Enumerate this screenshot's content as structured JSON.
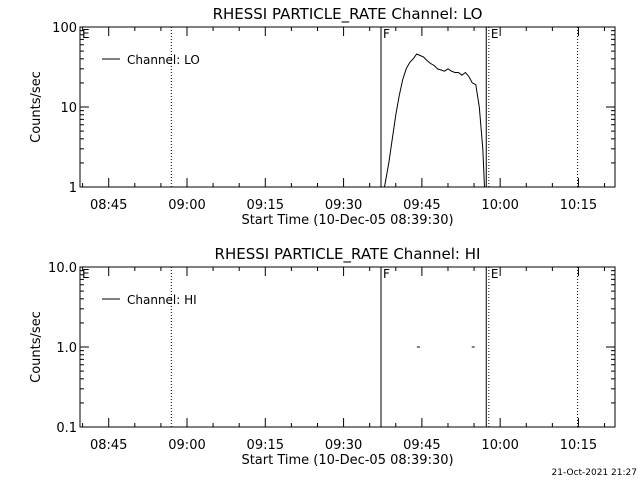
{
  "chart_data": [
    {
      "type": "line",
      "title": "RHESSI PARTICLE_RATE Channel: LO",
      "xlabel": "Start Time (10-Dec-05 08:39:30)",
      "ylabel": "Counts/sec",
      "yscale": "log",
      "ylim": [
        1,
        100
      ],
      "xlim": [
        "08:39:30",
        "10:22:00"
      ],
      "xticks": [
        "08:45",
        "09:00",
        "09:15",
        "09:30",
        "09:45",
        "10:00",
        "10:15"
      ],
      "yticks": [
        "1",
        "10",
        "100"
      ],
      "legend": {
        "label": "Channel: LO",
        "placement": "top-left"
      },
      "markers": [
        {
          "label": "E",
          "time": "08:39:30",
          "style": "none"
        },
        {
          "label": "",
          "time": "08:57:00",
          "style": "dotted"
        },
        {
          "label": "F",
          "time": "09:37:10",
          "style": "solid"
        },
        {
          "label": "",
          "time": "09:57:20",
          "style": "solid"
        },
        {
          "label": "E",
          "time": "09:57:50",
          "style": "dotted"
        },
        {
          "label": "",
          "time": "10:14:50",
          "style": "dotted"
        }
      ],
      "series": [
        {
          "name": "Channel: LO",
          "x": [
            "09:37:50",
            "09:38:40",
            "09:39:20",
            "09:40:00",
            "09:40:40",
            "09:41:20",
            "09:42:00",
            "09:42:40",
            "09:43:20",
            "09:44:00",
            "09:44:40",
            "09:45:20",
            "09:46:00",
            "09:46:40",
            "09:47:20",
            "09:48:00",
            "09:48:40",
            "09:49:20",
            "09:50:00",
            "09:50:40",
            "09:51:20",
            "09:52:00",
            "09:52:40",
            "09:53:20",
            "09:54:00",
            "09:54:40",
            "09:55:20",
            "09:56:00",
            "09:56:40",
            "09:57:00"
          ],
          "y": [
            1,
            2,
            4,
            8,
            14,
            22,
            30,
            36,
            40,
            46,
            44,
            42,
            38,
            35,
            33,
            30,
            29,
            28,
            30,
            28,
            27,
            27,
            25,
            27,
            24,
            20,
            19,
            10,
            3,
            1
          ]
        }
      ]
    },
    {
      "type": "line",
      "title": "RHESSI PARTICLE_RATE Channel: HI",
      "xlabel": "Start Time (10-Dec-05 08:39:30)",
      "ylabel": "Counts/sec",
      "yscale": "log",
      "ylim": [
        0.1,
        10
      ],
      "xlim": [
        "08:39:30",
        "10:22:00"
      ],
      "xticks": [
        "08:45",
        "09:00",
        "09:15",
        "09:30",
        "09:45",
        "10:00",
        "10:15"
      ],
      "yticks": [
        "0.1",
        "1.0",
        "10.0"
      ],
      "legend": {
        "label": "Channel: HI",
        "placement": "top-left"
      },
      "markers": [
        {
          "label": "E",
          "time": "08:39:30",
          "style": "none"
        },
        {
          "label": "",
          "time": "08:57:00",
          "style": "dotted"
        },
        {
          "label": "F",
          "time": "09:37:10",
          "style": "solid"
        },
        {
          "label": "",
          "time": "09:57:20",
          "style": "solid"
        },
        {
          "label": "E",
          "time": "09:57:50",
          "style": "dotted"
        },
        {
          "label": "",
          "time": "10:14:50",
          "style": "dotted"
        }
      ],
      "series": [
        {
          "name": "Channel: HI",
          "x": [
            "09:44:20",
            "09:54:50"
          ],
          "y": [
            1.0,
            1.0
          ]
        }
      ]
    }
  ],
  "footer": {
    "timestamp": "21-Oct-2021 21:27"
  }
}
